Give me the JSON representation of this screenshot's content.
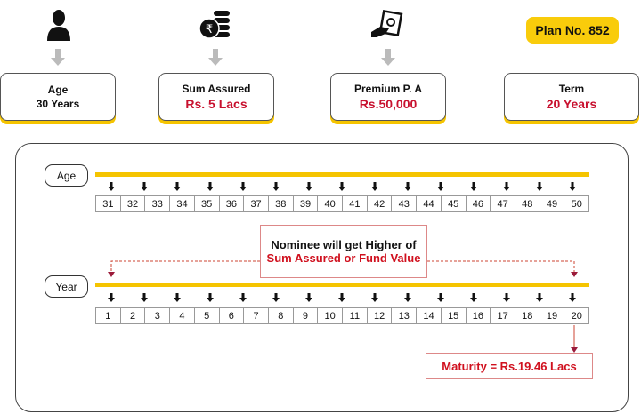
{
  "plan_badge": "Plan No. 852",
  "cards": [
    {
      "label": "Age",
      "value": "30 Years",
      "icon": "person-icon"
    },
    {
      "label": "Sum Assured",
      "value": "Rs. 5 Lacs",
      "icon": "rupee-coins-icon"
    },
    {
      "label": "Premium P. A",
      "value": "Rs.50,000",
      "icon": "hand-money-icon"
    },
    {
      "label": "Term",
      "value": "20 Years"
    }
  ],
  "timeline": {
    "age_label": "Age",
    "year_label": "Year",
    "ages": [
      "31",
      "32",
      "33",
      "34",
      "35",
      "36",
      "37",
      "38",
      "39",
      "40",
      "41",
      "42",
      "43",
      "44",
      "45",
      "46",
      "47",
      "48",
      "49",
      "50"
    ],
    "years": [
      "1",
      "2",
      "3",
      "4",
      "5",
      "6",
      "7",
      "8",
      "9",
      "10",
      "11",
      "12",
      "13",
      "14",
      "15",
      "16",
      "17",
      "18",
      "19",
      "20"
    ],
    "nominee_line1": "Nominee will get Higher of",
    "nominee_line2": "Sum Assured or Fund Value",
    "maturity": "Maturity = Rs.19.46 Lacs"
  },
  "colors": {
    "accent": "#f5c400",
    "highlight": "#c8102e",
    "connector": "#9b1b3a"
  }
}
